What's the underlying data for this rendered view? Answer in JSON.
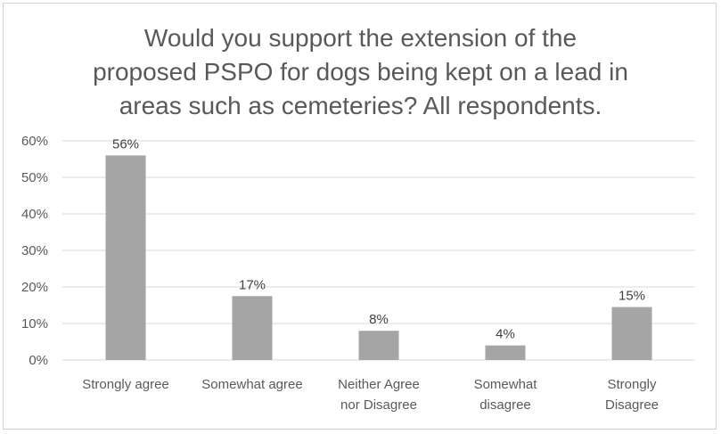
{
  "chart_data": {
    "type": "bar",
    "title_lines": [
      "Would you support the extension of the",
      "proposed PSPO for dogs being kept on a lead in",
      "areas such as cemeteries? All respondents."
    ],
    "categories": [
      [
        "Strongly agree"
      ],
      [
        "Somewhat agree"
      ],
      [
        "Neither Agree",
        "nor Disagree"
      ],
      [
        "Somewhat",
        "disagree"
      ],
      [
        "Strongly",
        "Disagree"
      ]
    ],
    "values": [
      56,
      17.5,
      8,
      4,
      14.5
    ],
    "data_labels": [
      "56%",
      "17%",
      "8%",
      "4%",
      "15%"
    ],
    "y_ticks": [
      "0%",
      "10%",
      "20%",
      "30%",
      "40%",
      "50%",
      "60%"
    ],
    "ylim": [
      0,
      60
    ],
    "ylabel": "",
    "xlabel": "",
    "grid": true,
    "legend": "none",
    "bar_color": "#a5a5a5",
    "grid_color": "#d9d9d9"
  }
}
